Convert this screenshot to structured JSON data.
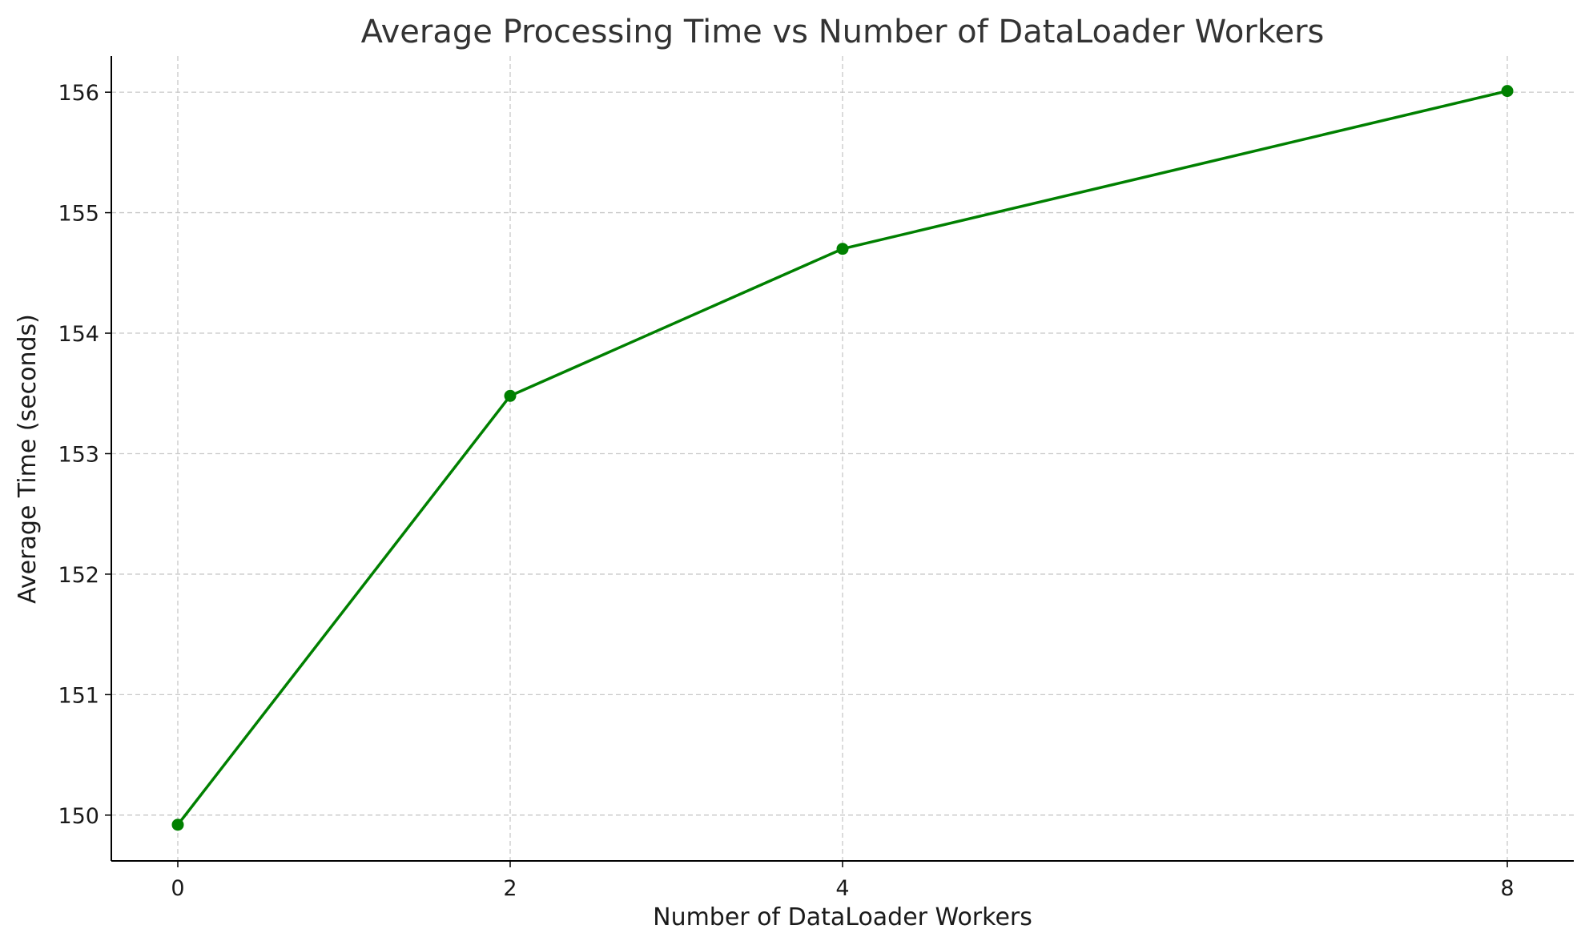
{
  "chart_data": {
    "type": "line",
    "title": "Average Processing Time vs Number of DataLoader Workers",
    "xlabel": "Number of DataLoader Workers",
    "ylabel": "Average Time (seconds)",
    "x": [
      0,
      2,
      4,
      8
    ],
    "xticks": [
      "0",
      "2",
      "4",
      "8"
    ],
    "yticks": [
      "150",
      "151",
      "152",
      "153",
      "154",
      "155",
      "156"
    ],
    "xlim": [
      -0.4,
      8.4
    ],
    "ylim": [
      149.62,
      156.3
    ],
    "grid": true,
    "series": [
      {
        "values": [
          149.92,
          153.48,
          154.7,
          156.01
        ],
        "color": "#008000"
      }
    ]
  }
}
